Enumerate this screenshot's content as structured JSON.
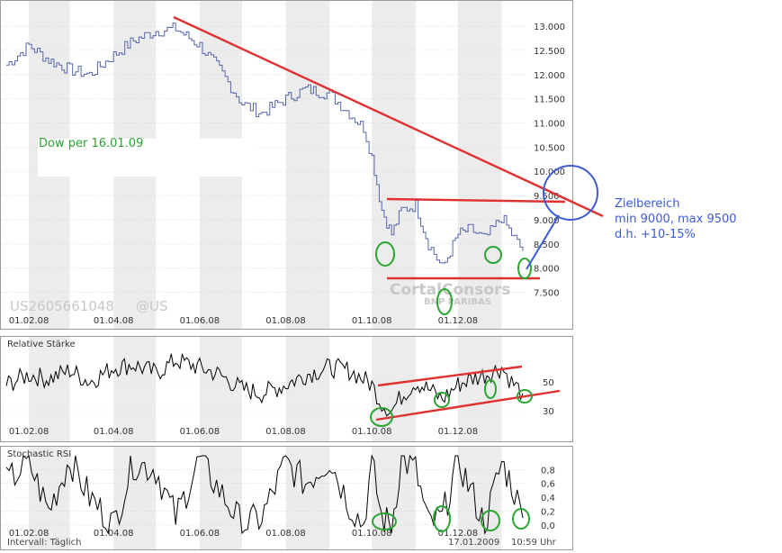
{
  "main_chart": {
    "title": "Dow per 16.01.09",
    "isin": "US2605661048",
    "exchange": "@US",
    "watermark_line1": "CortalConsors",
    "watermark_line2": "BNP PARIBAS",
    "annotation_lines": [
      "Zielbereich",
      "min 9000, max 9500",
      "d.h. +10-15%"
    ]
  },
  "rsi_panel": {
    "title": "Relative Stärke"
  },
  "stoch_panel": {
    "title": "Stochastic RSI"
  },
  "footer": {
    "interval": "Intervall: Täglich",
    "date": "17.01.2009",
    "time": "10:59 Uhr"
  },
  "colors": {
    "price_line": "#5566aa",
    "indicator_line": "#000000",
    "trend_red": "#e03030",
    "circle_green": "#2aa532",
    "target_blue": "#3d5bd6",
    "band_grey": "#ececec",
    "grid": "#cccccc"
  },
  "chart_data": [
    {
      "type": "line",
      "name": "price",
      "x_tick_labels": [
        "01.02.08",
        "01.04.08",
        "01.06.08",
        "01.08.08",
        "01.10.08",
        "01.12.08"
      ],
      "y_tick_labels": [
        "13.000",
        "12.500",
        "12.000",
        "11.500",
        "11.000",
        "10.500",
        "10.000",
        "9.500",
        "9.000",
        "8.500",
        "8.000",
        "7.500"
      ],
      "y_ticks": [
        13000,
        12500,
        12000,
        11500,
        11000,
        10500,
        10000,
        9500,
        9000,
        8500,
        8000,
        7500
      ],
      "ylim": [
        7250,
        13150
      ],
      "x": [
        "2008-01-16",
        "2008-02-01",
        "2008-02-15",
        "2008-03-01",
        "2008-03-15",
        "2008-04-01",
        "2008-04-15",
        "2008-05-01",
        "2008-05-15",
        "2008-06-01",
        "2008-06-15",
        "2008-07-01",
        "2008-07-15",
        "2008-08-01",
        "2008-08-15",
        "2008-09-01",
        "2008-09-15",
        "2008-09-25",
        "2008-10-01",
        "2008-10-08",
        "2008-10-15",
        "2008-10-22",
        "2008-11-01",
        "2008-11-10",
        "2008-11-20",
        "2008-12-01",
        "2008-12-10",
        "2008-12-20",
        "2009-01-01",
        "2009-01-08",
        "2009-01-16"
      ],
      "values": [
        12200,
        12600,
        12300,
        12100,
        12000,
        12400,
        12700,
        12900,
        12950,
        12600,
        12100,
        11400,
        11200,
        11500,
        11700,
        11600,
        11200,
        10900,
        10300,
        9200,
        8700,
        9200,
        9300,
        8500,
        8000,
        8700,
        8800,
        8600,
        9050,
        8700,
        8350
      ],
      "grid": true
    },
    {
      "type": "line",
      "name": "rsi",
      "x_tick_labels": [
        "01.02.08",
        "01.04.08",
        "01.06.08",
        "01.08.08",
        "01.10.08",
        "01.12.08"
      ],
      "y_tick_labels": [
        "50",
        "30"
      ],
      "y_ticks": [
        50,
        30
      ],
      "ylim": [
        20,
        75
      ],
      "values": [
        48,
        55,
        52,
        58,
        50,
        60,
        62,
        56,
        65,
        60,
        55,
        45,
        42,
        48,
        55,
        60,
        58,
        52,
        48,
        35,
        30,
        40,
        50,
        45,
        38,
        48,
        52,
        55,
        60,
        50,
        42
      ],
      "grid": true
    },
    {
      "type": "line",
      "name": "stochastic_rsi",
      "x_tick_labels": [
        "01.02.08",
        "01.04.08",
        "01.06.08",
        "01.08.08",
        "01.10.08",
        "01.12.08"
      ],
      "y_tick_labels": [
        "0,8",
        "0,6",
        "0,4",
        "0,2",
        "0,0"
      ],
      "y_ticks": [
        0.8,
        0.6,
        0.4,
        0.2,
        0.0
      ],
      "ylim": [
        -0.12,
        1.0
      ],
      "values": [
        0.6,
        0.9,
        0.2,
        0.95,
        0.4,
        0.0,
        0.9,
        0.8,
        0.1,
        0.95,
        0.5,
        0.0,
        0.1,
        0.9,
        0.6,
        0.95,
        0.3,
        0.0,
        0.9,
        0.1,
        0.0,
        0.95,
        0.8,
        0.0,
        0.1,
        0.95,
        0.5,
        0.0,
        0.9,
        0.6,
        0.1
      ],
      "grid": true
    }
  ]
}
